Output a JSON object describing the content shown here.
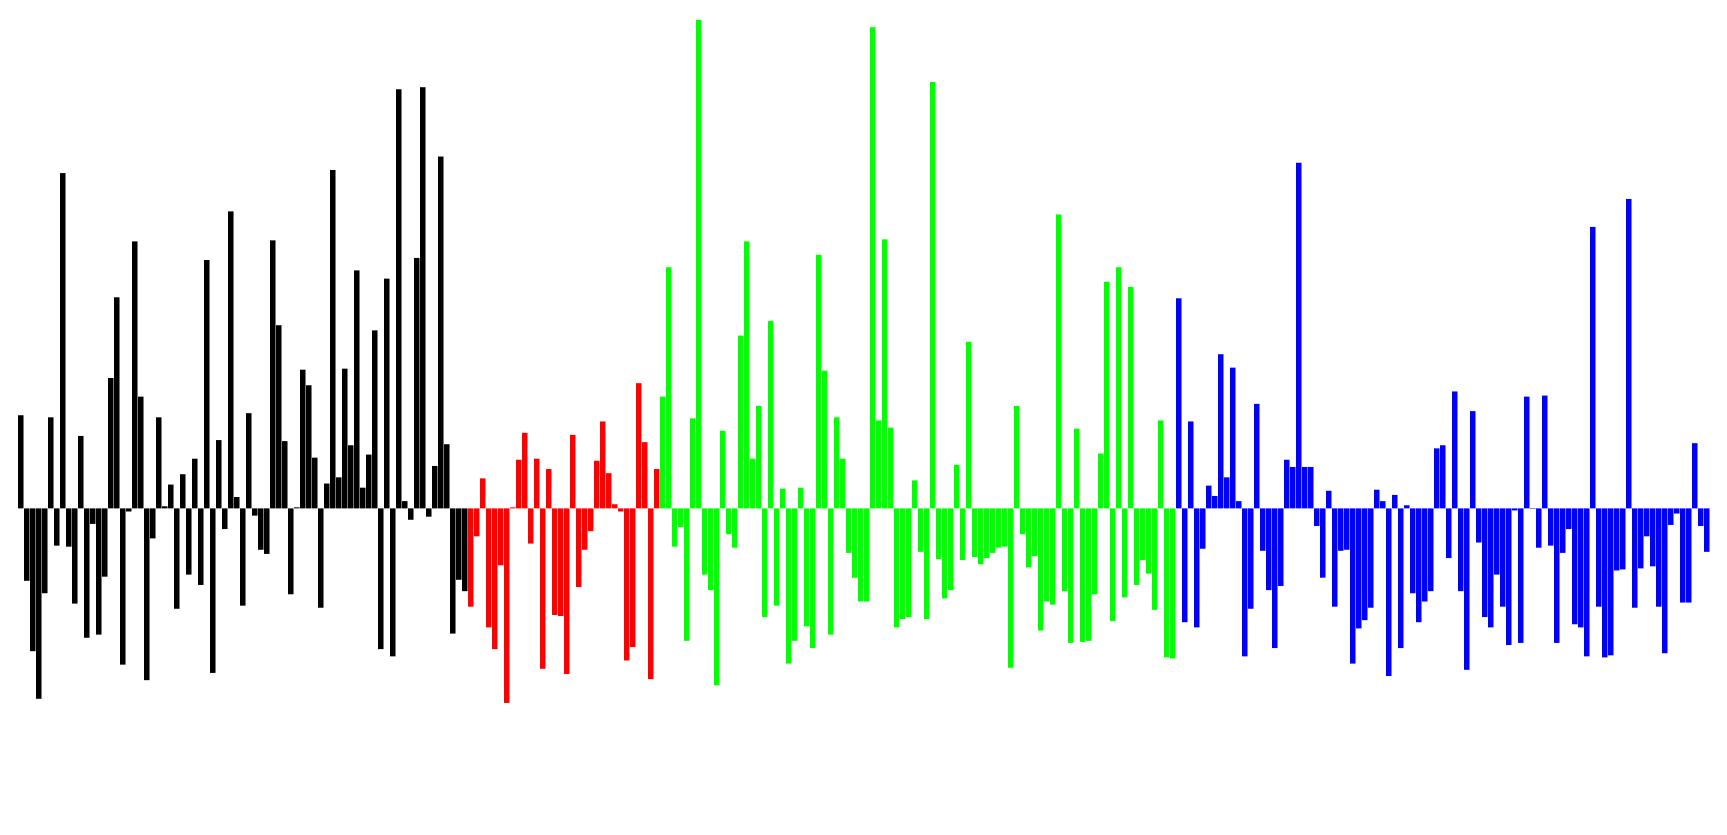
{
  "chart_data": {
    "type": "bar",
    "title": "",
    "xlabel": "",
    "ylabel": "",
    "axes_visible": false,
    "grid": false,
    "legend": "none",
    "baseline": 0,
    "ylim": [
      -190,
      470
    ],
    "series": [
      {
        "color": "#000000",
        "values": [
          90,
          -70,
          -138,
          -184,
          -82,
          88,
          -36,
          324,
          -37,
          -92,
          70,
          -125,
          -15,
          -122,
          -66,
          126,
          204,
          -151,
          -3,
          258,
          108,
          -166,
          -29,
          88,
          2,
          23,
          -97,
          33,
          -64,
          48,
          -74,
          240,
          -159,
          66,
          -20,
          287,
          11,
          -94,
          92,
          -7,
          -40,
          -44,
          259,
          177,
          65,
          -83,
          1,
          134,
          119,
          49,
          -96,
          24,
          327,
          30,
          135,
          61,
          230,
          20,
          52,
          172,
          -136,
          222,
          -143,
          405,
          7,
          -11,
          242,
          407,
          -8,
          41,
          340,
          62,
          -121,
          -69,
          -80
        ]
      },
      {
        "color": "#ff0000",
        "values": [
          -95,
          -27,
          29,
          -115,
          -136,
          -55,
          -188,
          1,
          47,
          73,
          -34,
          48,
          -155,
          38,
          -103,
          -104,
          -160,
          71,
          -76,
          -40,
          -22,
          46,
          84,
          34,
          4,
          -3,
          -147,
          -134,
          121,
          64,
          -165,
          38
        ]
      },
      {
        "color": "#00ff00",
        "values": [
          108,
          233,
          -37,
          -18,
          -128,
          87,
          472,
          -64,
          -79,
          -171,
          75,
          -25,
          -38,
          167,
          258,
          48,
          99,
          -105,
          181,
          -94,
          19,
          -150,
          -128,
          20,
          -114,
          -135,
          245,
          133,
          -122,
          88,
          48,
          -43,
          -67,
          -90,
          -90,
          465,
          85,
          260,
          78,
          -115,
          -107,
          -105,
          27,
          -42,
          -107,
          412,
          -49,
          -87,
          -79,
          42,
          -50,
          161,
          -47,
          -54,
          -48,
          -43,
          -38,
          -37,
          -154,
          99,
          -25,
          -57,
          -46,
          -118,
          -90,
          -93,
          284,
          -80,
          -130,
          77,
          -129,
          -128,
          -83,
          53,
          219,
          -109,
          233,
          -86,
          214,
          -74,
          -50,
          -63,
          -98,
          85,
          -144,
          -145
        ]
      },
      {
        "color": "#0000ff",
        "values": [
          203,
          -110,
          84,
          -115,
          -39,
          22,
          12,
          149,
          30,
          136,
          7,
          -143,
          -97,
          101,
          -41,
          -79,
          -135,
          -75,
          47,
          40,
          334,
          40,
          40,
          -17,
          -67,
          17,
          -95,
          -41,
          -40,
          -150,
          -116,
          -108,
          -96,
          18,
          7,
          -162,
          13,
          -135,
          3,
          -82,
          -110,
          -90,
          -80,
          58,
          61,
          -48,
          113,
          -80,
          -156,
          94,
          -33,
          -105,
          -115,
          -64,
          -95,
          -132,
          -2,
          -130,
          108,
          0,
          -38,
          109,
          -36,
          -130,
          -43,
          -20,
          -112,
          -115,
          -143,
          272,
          -95,
          -144,
          -142,
          -60,
          -59,
          299,
          -96,
          -58,
          -27,
          -56,
          -95,
          -140,
          -16,
          -5,
          -91,
          -91,
          63,
          -17,
          -42
        ]
      }
    ]
  }
}
